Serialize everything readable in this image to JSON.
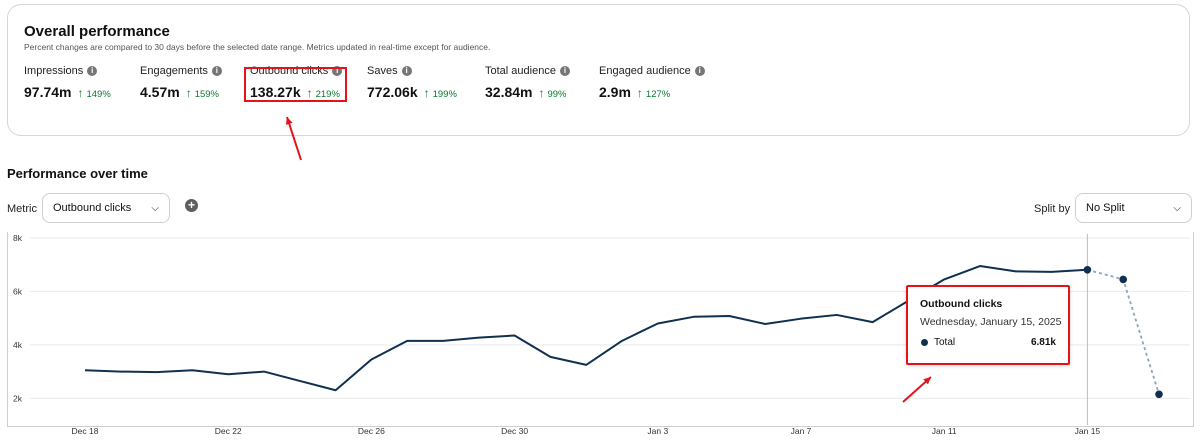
{
  "overview": {
    "title": "Overall performance",
    "subtitle": "Percent changes are compared to 30 days before the selected date range. Metrics updated in real-time except for audience.",
    "metrics": [
      {
        "label": "Impressions",
        "value": "97.74m",
        "change": "149%"
      },
      {
        "label": "Engagements",
        "value": "4.57m",
        "change": "159%"
      },
      {
        "label": "Outbound clicks",
        "value": "138.27k",
        "change": "219%"
      },
      {
        "label": "Saves",
        "value": "772.06k",
        "change": "199%"
      },
      {
        "label": "Total audience",
        "value": "32.84m",
        "change": "99%"
      },
      {
        "label": "Engaged audience",
        "value": "2.9m",
        "change": "127%"
      }
    ]
  },
  "performance": {
    "title": "Performance over time",
    "metric_label": "Metric",
    "metric_value": "Outbound clicks",
    "split_label": "Split by",
    "split_value": "No Split"
  },
  "icons": {
    "info": "info-icon",
    "up": "arrow-up-icon",
    "chevron": "chevron-down-icon",
    "add": "plus-circle-icon"
  },
  "tooltip": {
    "title": "Outbound clicks",
    "date": "Wednesday, January 15, 2025",
    "series": "Total",
    "value": "6.81k"
  },
  "colors": {
    "line": "#0f3050",
    "positive": "#0a7a2f",
    "annotation": "#e3131b"
  },
  "chart_data": {
    "type": "line",
    "ylim": [
      1000,
      8000
    ],
    "y_ticks": [
      {
        "value": 2000,
        "label": "2k"
      },
      {
        "value": 4000,
        "label": "4k"
      },
      {
        "value": 6000,
        "label": "6k"
      },
      {
        "value": 8000,
        "label": "8k"
      }
    ],
    "x_tick_labels": [
      "Dec 18",
      "Dec 22",
      "Dec 26",
      "Dec 30",
      "Jan 3",
      "Jan 7",
      "Jan 11",
      "Jan 15"
    ],
    "x_tick_days": [
      0,
      4,
      8,
      12,
      16,
      20,
      24,
      28
    ],
    "day_range": [
      -2,
      30.6
    ],
    "solid_days": [
      0,
      1,
      2,
      3,
      4,
      5,
      6,
      7,
      8,
      9,
      10,
      11,
      12,
      13,
      14,
      15,
      16,
      17,
      18,
      19,
      20,
      21,
      22,
      23,
      24,
      25,
      26,
      27,
      28
    ],
    "solid_values": [
      3050,
      3000,
      2980,
      3050,
      2900,
      3000,
      2650,
      2300,
      3450,
      4150,
      4150,
      4270,
      4350,
      3550,
      3250,
      4150,
      4800,
      5050,
      5080,
      4780,
      4980,
      5120,
      4850,
      5650,
      6450,
      6950,
      6750,
      6730,
      6810
    ],
    "projected_days": [
      28,
      29,
      30
    ],
    "projected_values": [
      6810,
      6450,
      2150
    ],
    "hover_day": 28
  }
}
